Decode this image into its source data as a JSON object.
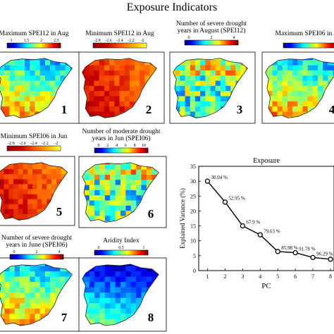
{
  "figure_title": "Exposure Indicators",
  "map_panels": [
    {
      "number": "1",
      "title_lines": [
        "Maximum SPEI12 in Aug"
      ],
      "colorbar_ticks": [
        "1",
        "1.5",
        "2",
        "2.5"
      ],
      "palette": "jet",
      "pattern": "wet"
    },
    {
      "number": "2",
      "title_lines": [
        "Minimum SPEI12 in Aug"
      ],
      "colorbar_ticks": [
        "-2.8",
        "-2.6",
        "-2.4",
        "-2.2",
        "-2"
      ],
      "palette": "hot",
      "pattern": "dry"
    },
    {
      "number": "3",
      "title_lines": [
        "Number of severe drought",
        "years in August (SPEI12)"
      ],
      "colorbar_ticks": [
        "0",
        "2",
        "4"
      ],
      "palette": "jet",
      "pattern": "count"
    },
    {
      "number": "4",
      "title_lines": [
        "Maximum SPEI06 in Aug"
      ],
      "colorbar_ticks": [],
      "palette": "jet",
      "pattern": "wet"
    },
    {
      "number": "5",
      "title_lines": [
        "Minimum SPEI06 in Jun"
      ],
      "colorbar_ticks": [
        "-2.8",
        "-2.6",
        "-2.4",
        "-2.2",
        "-2"
      ],
      "palette": "hot",
      "pattern": "dry"
    },
    {
      "number": "6",
      "title_lines": [
        "Number of moderate drought",
        "years in Jun (SPEI06)"
      ],
      "colorbar_ticks": [
        "0",
        "2",
        "4",
        "6",
        "8",
        "10"
      ],
      "palette": "jet",
      "pattern": "count"
    },
    {
      "number": "7",
      "title_lines": [
        "Number of severe drought",
        "years in June (SPEI06)"
      ],
      "colorbar_ticks": [
        "0",
        "2",
        "4"
      ],
      "palette": "jet",
      "pattern": "wet"
    },
    {
      "number": "8",
      "title_lines": [
        "Aridity Index"
      ],
      "colorbar_ticks": [
        "0",
        "0.5",
        "1"
      ],
      "palette": "jet",
      "pattern": "aridity"
    }
  ],
  "colors": {
    "line": "#000000",
    "marker_fill": "#ffffff",
    "land_border": "#222222"
  },
  "chart_data": {
    "type": "line",
    "title": "Exposure",
    "xlabel": "PC",
    "ylabel": "Explained Variance (%)",
    "x": [
      1,
      2,
      3,
      4,
      5,
      6,
      7,
      8
    ],
    "values": [
      30,
      23,
      15,
      12,
      6.4,
      6,
      4.4,
      3.8
    ],
    "point_labels": [
      "30.04 %",
      "52.95 %",
      "67.9 %",
      "79.63 %",
      "85.98 %",
      "91.78 %",
      "96.29 %",
      ""
    ],
    "xlim": [
      0.5,
      8.2
    ],
    "ylim": [
      0,
      35
    ],
    "xticks": [
      "1",
      "2",
      "3",
      "4",
      "5",
      "6",
      "7",
      "8"
    ],
    "yticks": [
      "0",
      "5",
      "10",
      "15",
      "20",
      "25",
      "30",
      "35"
    ],
    "grid": false
  }
}
